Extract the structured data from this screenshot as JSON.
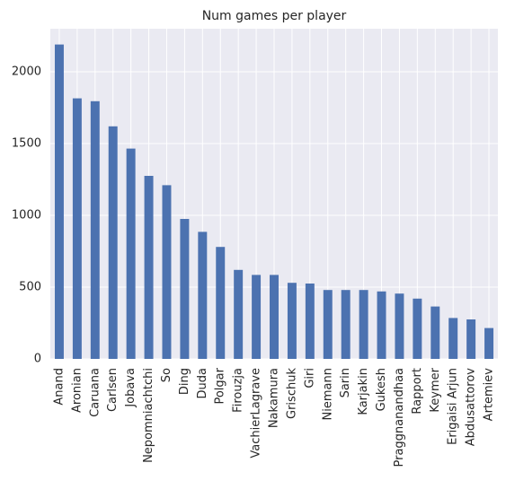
{
  "chart_data": {
    "type": "bar",
    "title": "Num games per player",
    "xlabel": "",
    "ylabel": "",
    "categories": [
      "Anand",
      "Aronian",
      "Caruana",
      "Carlsen",
      "Jobava",
      "Nepomniachtchi",
      "So",
      "Ding",
      "Duda",
      "Polgar",
      "Firouzja",
      "VachierLagrave",
      "Nakamura",
      "Grischuk",
      "Giri",
      "Niemann",
      "Sarin",
      "Karjakin",
      "Gukesh",
      "Praggnanandhaa",
      "Rapport",
      "Keymer",
      "Erigaisi Arjun",
      "Abdusattorov",
      "Artemiev"
    ],
    "values": [
      2190,
      1815,
      1795,
      1620,
      1465,
      1275,
      1210,
      975,
      885,
      780,
      620,
      585,
      585,
      530,
      525,
      480,
      480,
      480,
      470,
      455,
      420,
      365,
      285,
      275,
      215
    ],
    "ylim": [
      0,
      2300
    ],
    "yticks": [
      0,
      500,
      1000,
      1500,
      2000
    ],
    "ytick_labels": [
      "0",
      "500",
      "1000",
      "1500",
      "2000"
    ],
    "grid": true,
    "legend": "none",
    "colors": {
      "bar": "#4c72b0",
      "plot_background": "#eaeaf2",
      "grid": "#ffffff",
      "text": "#262626"
    }
  }
}
